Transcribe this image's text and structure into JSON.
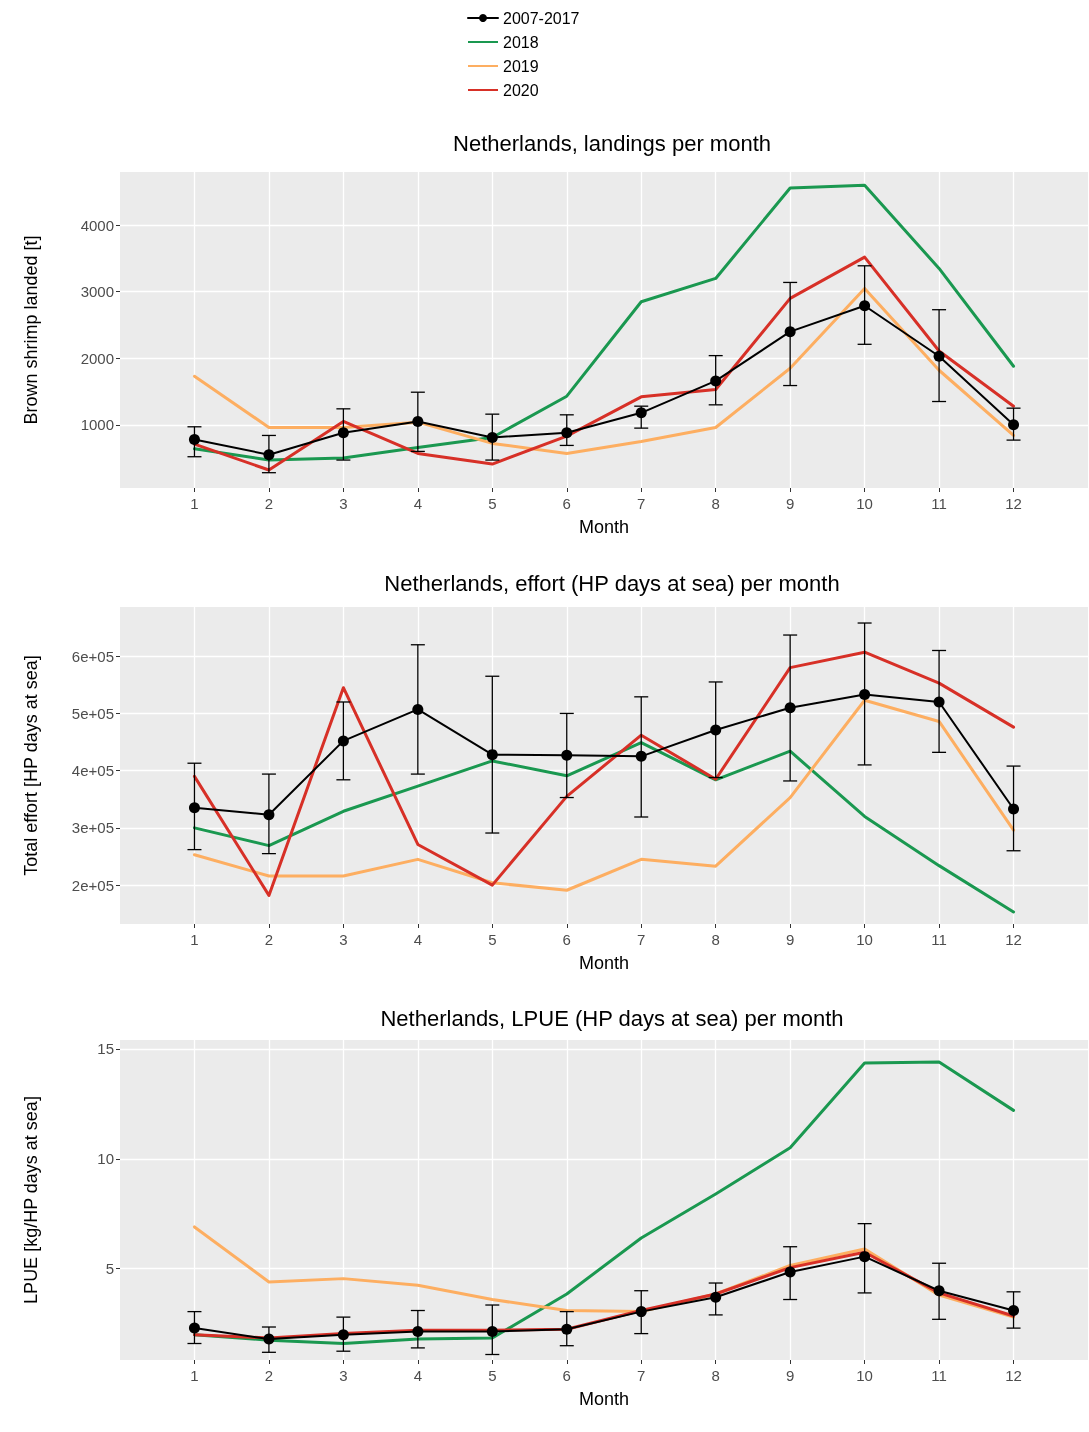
{
  "chart_data": [
    {
      "type": "line",
      "title": "Netherlands, landings per month",
      "xlabel": "Month",
      "ylabel": "Brown shrimp landed [t]",
      "x": [
        1,
        2,
        3,
        4,
        5,
        6,
        7,
        8,
        9,
        10,
        11,
        12
      ],
      "xlim": [
        0,
        13
      ],
      "xticks": [
        1,
        2,
        3,
        4,
        5,
        6,
        7,
        8,
        9,
        10,
        11,
        12
      ],
      "ylim": [
        50,
        4800
      ],
      "yticks": [
        1000,
        2000,
        3000,
        4000
      ],
      "grid": true,
      "legend": "top",
      "line_style": "solid",
      "series": [
        {
          "name": "2007-2017",
          "color": "#000000",
          "marker": "circle",
          "values": [
            780,
            550,
            880,
            1050,
            810,
            880,
            1180,
            1660,
            2400,
            2790,
            2030,
            1000
          ],
          "errors": [
            [
              520,
              970
            ],
            [
              280,
              840
            ],
            [
              470,
              1240
            ],
            [
              600,
              1490
            ],
            [
              470,
              1160
            ],
            [
              690,
              1150
            ],
            [
              950,
              1280
            ],
            [
              1300,
              2040
            ],
            [
              1590,
              3140
            ],
            [
              2210,
              3390
            ],
            [
              1350,
              2730
            ],
            [
              770,
              1250
            ]
          ]
        },
        {
          "name": "2018",
          "color": "#1a9850",
          "marker": "none",
          "values": [
            640,
            470,
            500,
            660,
            810,
            1430,
            2850,
            3200,
            4560,
            4600,
            3350,
            1880
          ]
        },
        {
          "name": "2019",
          "color": "#fdae61",
          "marker": "none",
          "values": [
            1730,
            960,
            960,
            1040,
            720,
            570,
            750,
            960,
            1850,
            3050,
            1820,
            840
          ]
        },
        {
          "name": "2020",
          "color": "#d73027",
          "marker": "none",
          "values": [
            710,
            320,
            1050,
            570,
            410,
            830,
            1420,
            1530,
            2900,
            3520,
            2110,
            1280
          ]
        }
      ]
    },
    {
      "type": "line",
      "title": "Netherlands, effort (HP days at sea) per month",
      "xlabel": "Month",
      "ylabel": "Total effort [HP days at sea]",
      "x": [
        1,
        2,
        3,
        4,
        5,
        6,
        7,
        8,
        9,
        10,
        11,
        12
      ],
      "xlim": [
        0,
        13
      ],
      "xticks": [
        1,
        2,
        3,
        4,
        5,
        6,
        7,
        8,
        9,
        10,
        11,
        12
      ],
      "ylim": [
        132000,
        686000
      ],
      "yticks": [
        {
          "value": 200000,
          "label": "2e+05"
        },
        {
          "value": 300000,
          "label": "3e+05"
        },
        {
          "value": 400000,
          "label": "4e+05"
        },
        {
          "value": 500000,
          "label": "5e+05"
        },
        {
          "value": 600000,
          "label": "6e+05"
        }
      ],
      "grid": true,
      "line_style": "solid",
      "series": [
        {
          "color": "#000000",
          "marker": "circle",
          "values": [
            335000,
            323000,
            452000,
            507000,
            428000,
            427000,
            425000,
            471000,
            510000,
            533000,
            520000,
            333000
          ],
          "errors": [
            [
              262000,
              413000
            ],
            [
              255000,
              394000
            ],
            [
              384000,
              520000
            ],
            [
              394000,
              620000
            ],
            [
              291000,
              565000
            ],
            [
              353000,
              500000
            ],
            [
              319000,
              529000
            ],
            [
              388000,
              555000
            ],
            [
              382000,
              637000
            ],
            [
              410000,
              658000
            ],
            [
              432000,
              610000
            ],
            [
              260000,
              408000
            ]
          ]
        },
        {
          "color": "#1a9850",
          "marker": "none",
          "values": [
            300000,
            269000,
            329000,
            373000,
            417000,
            391000,
            449000,
            384000,
            434000,
            320000,
            234000,
            153000
          ]
        },
        {
          "color": "#fdae61",
          "marker": "none",
          "values": [
            253000,
            216000,
            216000,
            245000,
            204000,
            191000,
            245000,
            233000,
            353000,
            523000,
            486000,
            296000
          ]
        },
        {
          "color": "#d73027",
          "marker": "none",
          "values": [
            390000,
            182000,
            545000,
            271000,
            200000,
            355000,
            462000,
            385000,
            580000,
            607000,
            553000,
            476000
          ]
        }
      ]
    },
    {
      "type": "line",
      "title": "Netherlands, LPUE (HP days at sea) per month",
      "xlabel": "Month",
      "ylabel": "LPUE [kg/HP days at sea]",
      "x": [
        1,
        2,
        3,
        4,
        5,
        6,
        7,
        8,
        9,
        10,
        11,
        12
      ],
      "xlim": [
        0,
        13
      ],
      "xticks": [
        1,
        2,
        3,
        4,
        5,
        6,
        7,
        8,
        9,
        10,
        11,
        12
      ],
      "ylim": [
        0.85,
        15.4
      ],
      "yticks": [
        5,
        10,
        15
      ],
      "grid": true,
      "line_style": "solid",
      "series": [
        {
          "color": "#000000",
          "marker": "circle",
          "values": [
            2.3,
            1.8,
            2.0,
            2.15,
            2.15,
            2.25,
            3.05,
            3.7,
            4.85,
            5.55,
            4.0,
            3.1
          ],
          "errors": [
            [
              1.6,
              3.05
            ],
            [
              1.2,
              2.35
            ],
            [
              1.25,
              2.8
            ],
            [
              1.4,
              3.1
            ],
            [
              1.1,
              3.35
            ],
            [
              1.5,
              3.05
            ],
            [
              2.05,
              4.0
            ],
            [
              2.9,
              4.35
            ],
            [
              3.6,
              6.0
            ],
            [
              3.9,
              7.05
            ],
            [
              2.7,
              5.25
            ],
            [
              2.3,
              3.95
            ]
          ]
        },
        {
          "color": "#1a9850",
          "marker": "none",
          "values": [
            2.0,
            1.75,
            1.6,
            1.8,
            1.85,
            3.85,
            6.4,
            8.4,
            10.5,
            14.35,
            14.4,
            12.2
          ]
        },
        {
          "color": "#fdae61",
          "marker": "none",
          "values": [
            6.9,
            4.4,
            4.55,
            4.25,
            3.6,
            3.1,
            3.05,
            3.85,
            5.15,
            5.9,
            3.8,
            2.8
          ]
        },
        {
          "color": "#d73027",
          "marker": "none",
          "values": [
            2.0,
            1.85,
            2.05,
            2.2,
            2.2,
            2.25,
            3.1,
            3.85,
            5.05,
            5.75,
            3.9,
            2.85
          ]
        }
      ]
    }
  ]
}
